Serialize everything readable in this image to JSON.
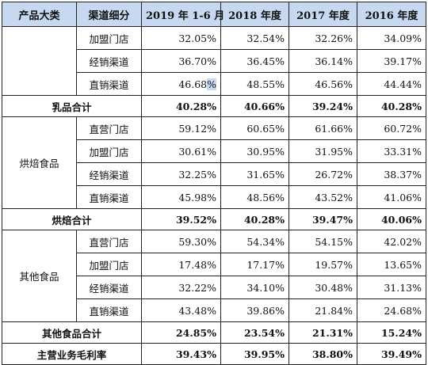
{
  "header": [
    "产品大类",
    "渠道细分",
    "2019 年 1-6 月",
    "2018 年度",
    "2017 年度",
    "2016 年度"
  ],
  "groups": {
    "dairy": {
      "category": "",
      "rows": [
        {
          "channel": "加盟门店",
          "v": [
            "32.05%",
            "32.54%",
            "32.26%",
            "34.09%"
          ]
        },
        {
          "channel": "经销渠道",
          "v": [
            "36.70%",
            "36.45%",
            "36.14%",
            "39.17%"
          ]
        },
        {
          "channel": "直销渠道",
          "v": [
            "46.68",
            "48.55%",
            "46.56%",
            "44.44%"
          ],
          "v0_suffix": "%"
        }
      ],
      "subtotal": {
        "label": "乳品合计",
        "v": [
          "40.28%",
          "40.66%",
          "39.24%",
          "40.28%"
        ]
      }
    },
    "bakery": {
      "category": "烘焙食品",
      "rows": [
        {
          "channel": "直营门店",
          "v": [
            "59.12%",
            "60.65%",
            "61.66%",
            "60.72%"
          ]
        },
        {
          "channel": "加盟门店",
          "v": [
            "30.61%",
            "30.95%",
            "31.95%",
            "33.31%"
          ]
        },
        {
          "channel": "经销渠道",
          "v": [
            "32.25%",
            "31.65%",
            "26.72%",
            "38.37%"
          ]
        },
        {
          "channel": "直销渠道",
          "v": [
            "45.98%",
            "48.56%",
            "43.52%",
            "41.06%"
          ]
        }
      ],
      "subtotal": {
        "label": "烘焙合计",
        "v": [
          "39.52%",
          "40.28%",
          "39.47%",
          "40.06%"
        ]
      }
    },
    "other": {
      "category": "其他食品",
      "rows": [
        {
          "channel": "直营门店",
          "v": [
            "59.30%",
            "54.34%",
            "54.15%",
            "42.02%"
          ]
        },
        {
          "channel": "加盟门店",
          "v": [
            "17.48%",
            "17.17%",
            "19.57%",
            "13.65%"
          ]
        },
        {
          "channel": "经销渠道",
          "v": [
            "32.22%",
            "34.10%",
            "30.48%",
            "31.13%"
          ]
        },
        {
          "channel": "直销渠道",
          "v": [
            "43.48%",
            "39.86%",
            "21.84%",
            "24.68%"
          ]
        }
      ],
      "subtotal": {
        "label": "其他食品合计",
        "v": [
          "24.85%",
          "23.54%",
          "21.31%",
          "15.24%"
        ]
      }
    }
  },
  "total": {
    "label": "主营业务毛利率",
    "v": [
      "39.43%",
      "39.95%",
      "38.80%",
      "39.49%"
    ]
  }
}
